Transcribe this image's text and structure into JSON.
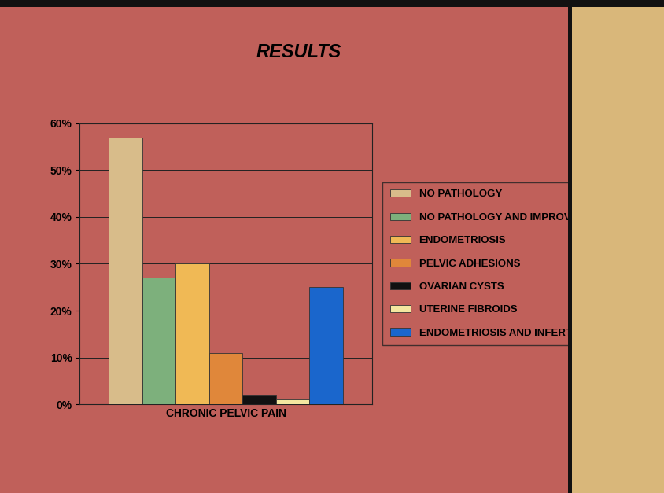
{
  "chart_data": {
    "type": "bar",
    "title": "RESULTS",
    "categories": [
      "CHRONIC PELVIC PAIN"
    ],
    "series": [
      {
        "name": "NO PATHOLOGY",
        "color": "#d8bc8a",
        "values": [
          57
        ]
      },
      {
        "name": "NO PATHOLOGY AND IMPROVEMENT",
        "color": "#7db07c",
        "values": [
          27
        ]
      },
      {
        "name": "ENDOMETRIOSIS",
        "color": "#f0b955",
        "values": [
          30
        ]
      },
      {
        "name": "PELVIC ADHESIONS",
        "color": "#e0873a",
        "values": [
          11
        ]
      },
      {
        "name": "OVARIAN CYSTS",
        "color": "#111111",
        "values": [
          2
        ]
      },
      {
        "name": "UTERINE FIBROIDS",
        "color": "#f3e6a0",
        "values": [
          1
        ]
      },
      {
        "name": "ENDOMETRIOSIS AND INFERTILITY",
        "color": "#1a66cc",
        "values": [
          25
        ]
      }
    ],
    "ylim": [
      0,
      60
    ],
    "yticks": [
      {
        "value": 0,
        "label": "0%"
      },
      {
        "value": 10,
        "label": "10%"
      },
      {
        "value": 20,
        "label": "20%"
      },
      {
        "value": 30,
        "label": "30%"
      },
      {
        "value": 40,
        "label": "40%"
      },
      {
        "value": 50,
        "label": "50%"
      },
      {
        "value": 60,
        "label": "60%"
      }
    ],
    "grid": true,
    "legend": "right"
  }
}
